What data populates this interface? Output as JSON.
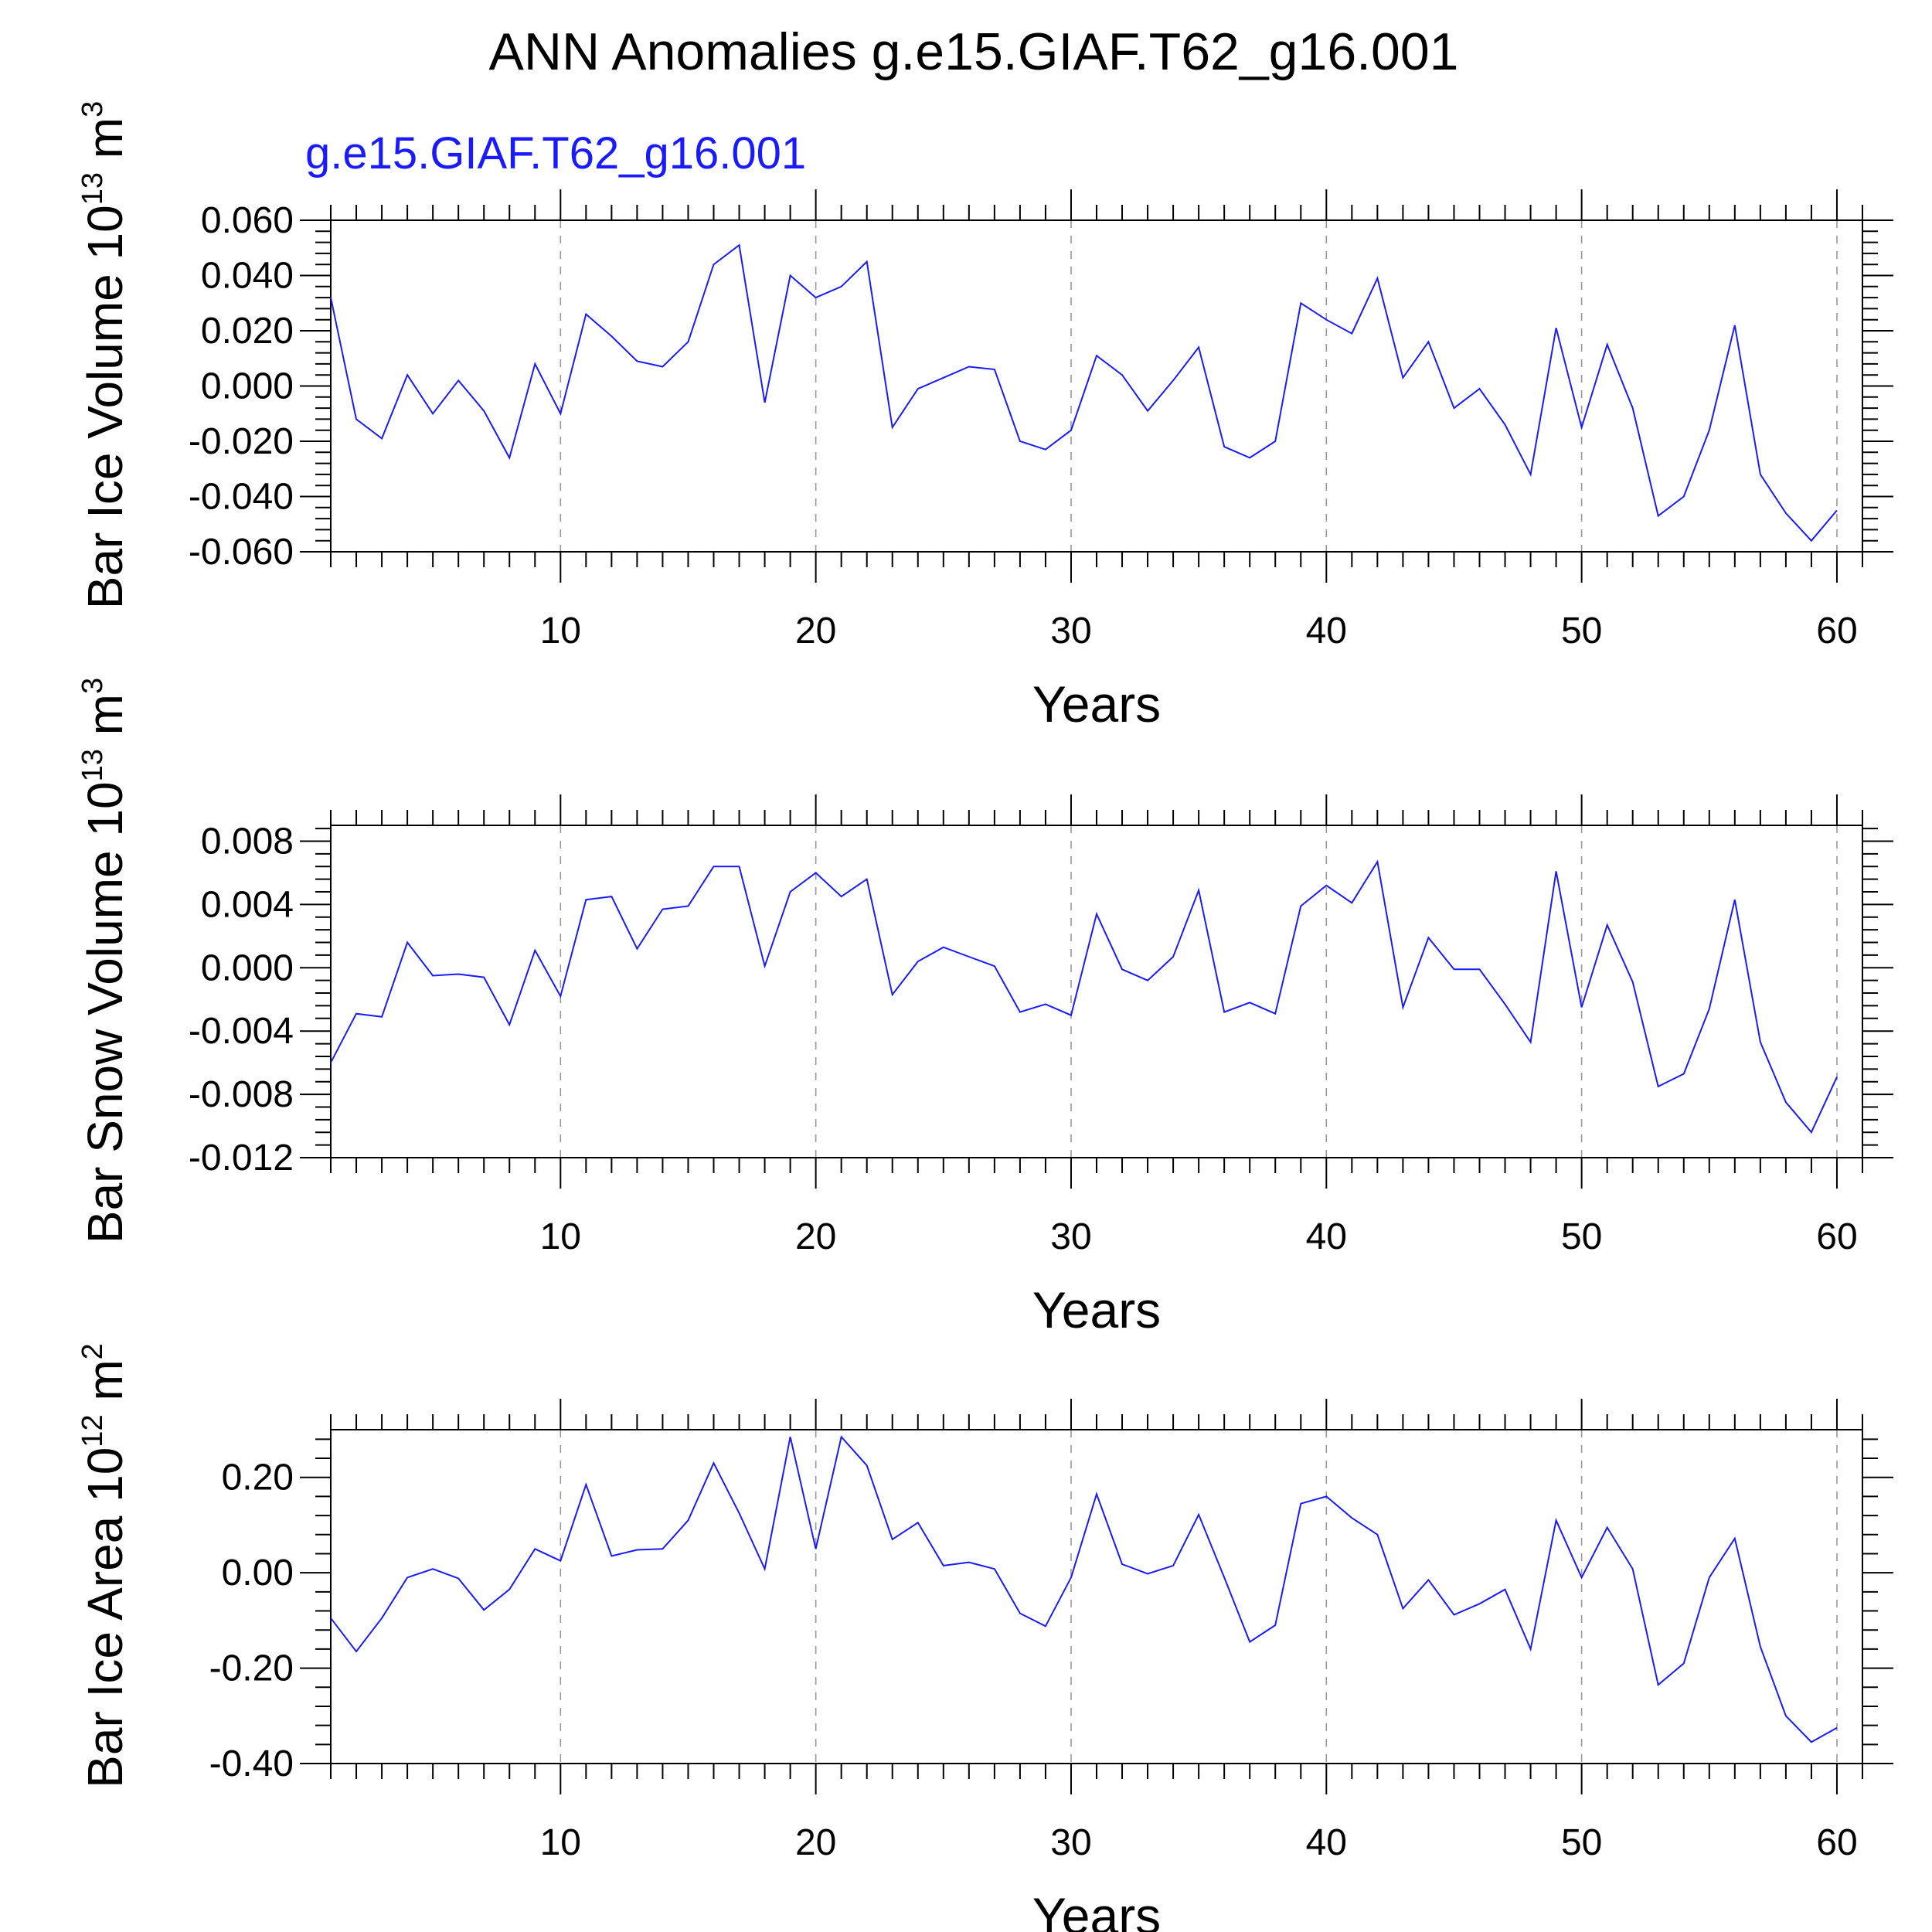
{
  "title": "ANN Anomalies g.e15.GIAF.T62_g16.001",
  "subtitle": "g.e15.GIAF.T62_g16.001",
  "colors": {
    "line": "#1a1aff",
    "subtitle": "#1a1aff",
    "grid": "#999999",
    "frame": "#000000"
  },
  "chart_data": [
    {
      "type": "line",
      "ylabel": {
        "text": "Bar Ice Volume 10",
        "sup1": "13",
        "unit": " m",
        "sup2": "3"
      },
      "xlabel": "Years",
      "xlim": [
        1,
        61
      ],
      "ylim": [
        -0.06,
        0.06
      ],
      "yticks": [
        -0.06,
        -0.04,
        -0.02,
        0.0,
        0.02,
        0.04,
        0.06
      ],
      "ytick_labels": [
        "-0.060",
        "-0.040",
        "-0.020",
        "0.000",
        "0.020",
        "0.040",
        "0.060"
      ],
      "xticks": [
        10,
        20,
        30,
        40,
        50,
        60
      ],
      "xtick_labels": [
        "10",
        "20",
        "30",
        "40",
        "50",
        "60"
      ],
      "grid": "dashed vertical at 10-year ticks",
      "series": [
        {
          "values": [
            0.032,
            -0.012,
            -0.019,
            0.004,
            -0.01,
            0.002,
            -0.009,
            -0.026,
            0.008,
            -0.01,
            0.026,
            0.018,
            0.009,
            0.007,
            0.016,
            0.044,
            0.051,
            -0.006,
            0.04,
            0.032,
            0.036,
            0.045,
            -0.015,
            -0.001,
            0.003,
            0.007,
            0.006,
            -0.02,
            -0.023,
            -0.016,
            0.011,
            0.004,
            -0.009,
            0.002,
            0.014,
            -0.022,
            -0.026,
            -0.02,
            0.03,
            0.024,
            0.019,
            0.039,
            0.003,
            0.016,
            -0.008,
            -0.001,
            -0.014,
            -0.032,
            0.021,
            -0.015,
            0.015,
            -0.008,
            -0.047,
            -0.04,
            -0.016,
            0.022,
            -0.032,
            -0.046,
            -0.056,
            -0.045
          ]
        }
      ]
    },
    {
      "type": "line",
      "ylabel": {
        "text": "Bar Snow Volume 10",
        "sup1": "13",
        "unit": " m",
        "sup2": "3"
      },
      "xlabel": "Years",
      "xlim": [
        1,
        61
      ],
      "ylim": [
        -0.012,
        0.009
      ],
      "yticks": [
        -0.012,
        -0.008,
        -0.004,
        0.0,
        0.004,
        0.008
      ],
      "ytick_labels": [
        "-0.012",
        "-0.008",
        "-0.004",
        "0.000",
        "0.004",
        "0.008"
      ],
      "xticks": [
        10,
        20,
        30,
        40,
        50,
        60
      ],
      "xtick_labels": [
        "10",
        "20",
        "30",
        "40",
        "50",
        "60"
      ],
      "grid": "dashed vertical at 10-year ticks",
      "series": [
        {
          "values": [
            -0.006,
            -0.0029,
            -0.0031,
            0.0016,
            -0.0005,
            -0.0004,
            -0.0006,
            -0.0036,
            0.0011,
            -0.0018,
            0.0043,
            0.0045,
            0.0012,
            0.0037,
            0.0039,
            0.0064,
            0.0064,
            0.0001,
            0.0048,
            0.006,
            0.0045,
            0.0056,
            -0.0017,
            0.0004,
            0.0013,
            0.0007,
            0.0001,
            -0.0028,
            -0.0023,
            -0.003,
            0.0034,
            -0.0001,
            -0.0008,
            0.0007,
            0.0049,
            -0.0028,
            -0.0022,
            -0.0029,
            0.0039,
            0.0052,
            0.0041,
            0.0067,
            -0.0025,
            0.0019,
            -0.0001,
            -0.0001,
            -0.0023,
            -0.0047,
            0.0061,
            -0.0025,
            0.0027,
            -0.0009,
            -0.0075,
            -0.0067,
            -0.0026,
            0.0043,
            -0.0047,
            -0.0085,
            -0.0104,
            -0.0069
          ]
        }
      ]
    },
    {
      "type": "line",
      "ylabel": {
        "text": "Bar Ice Area 10",
        "sup1": "12",
        "unit": " m",
        "sup2": "2"
      },
      "xlabel": "Years",
      "xlim": [
        1,
        61
      ],
      "ylim": [
        -0.4,
        0.3
      ],
      "yticks": [
        -0.4,
        -0.2,
        0.0,
        0.2
      ],
      "ytick_labels": [
        "-0.40",
        "-0.20",
        "0.00",
        "0.20"
      ],
      "xticks": [
        10,
        20,
        30,
        40,
        50,
        60
      ],
      "xtick_labels": [
        "10",
        "20",
        "30",
        "40",
        "50",
        "60"
      ],
      "grid": "dashed vertical at 10-year ticks",
      "series": [
        {
          "values": [
            -0.095,
            -0.165,
            -0.095,
            -0.01,
            0.008,
            -0.012,
            -0.078,
            -0.035,
            0.05,
            0.025,
            0.185,
            0.035,
            0.048,
            0.05,
            0.11,
            0.23,
            0.125,
            0.008,
            0.285,
            0.05,
            0.285,
            0.225,
            0.07,
            0.105,
            0.015,
            0.022,
            0.008,
            -0.085,
            -0.112,
            -0.01,
            0.165,
            0.018,
            -0.002,
            0.015,
            0.122,
            -0.01,
            -0.145,
            -0.11,
            0.145,
            0.16,
            0.115,
            0.08,
            -0.075,
            -0.015,
            -0.088,
            -0.065,
            -0.035,
            -0.16,
            0.11,
            -0.01,
            0.095,
            0.008,
            -0.235,
            -0.19,
            -0.01,
            0.072,
            -0.155,
            -0.3,
            -0.355,
            -0.325
          ]
        }
      ]
    }
  ]
}
